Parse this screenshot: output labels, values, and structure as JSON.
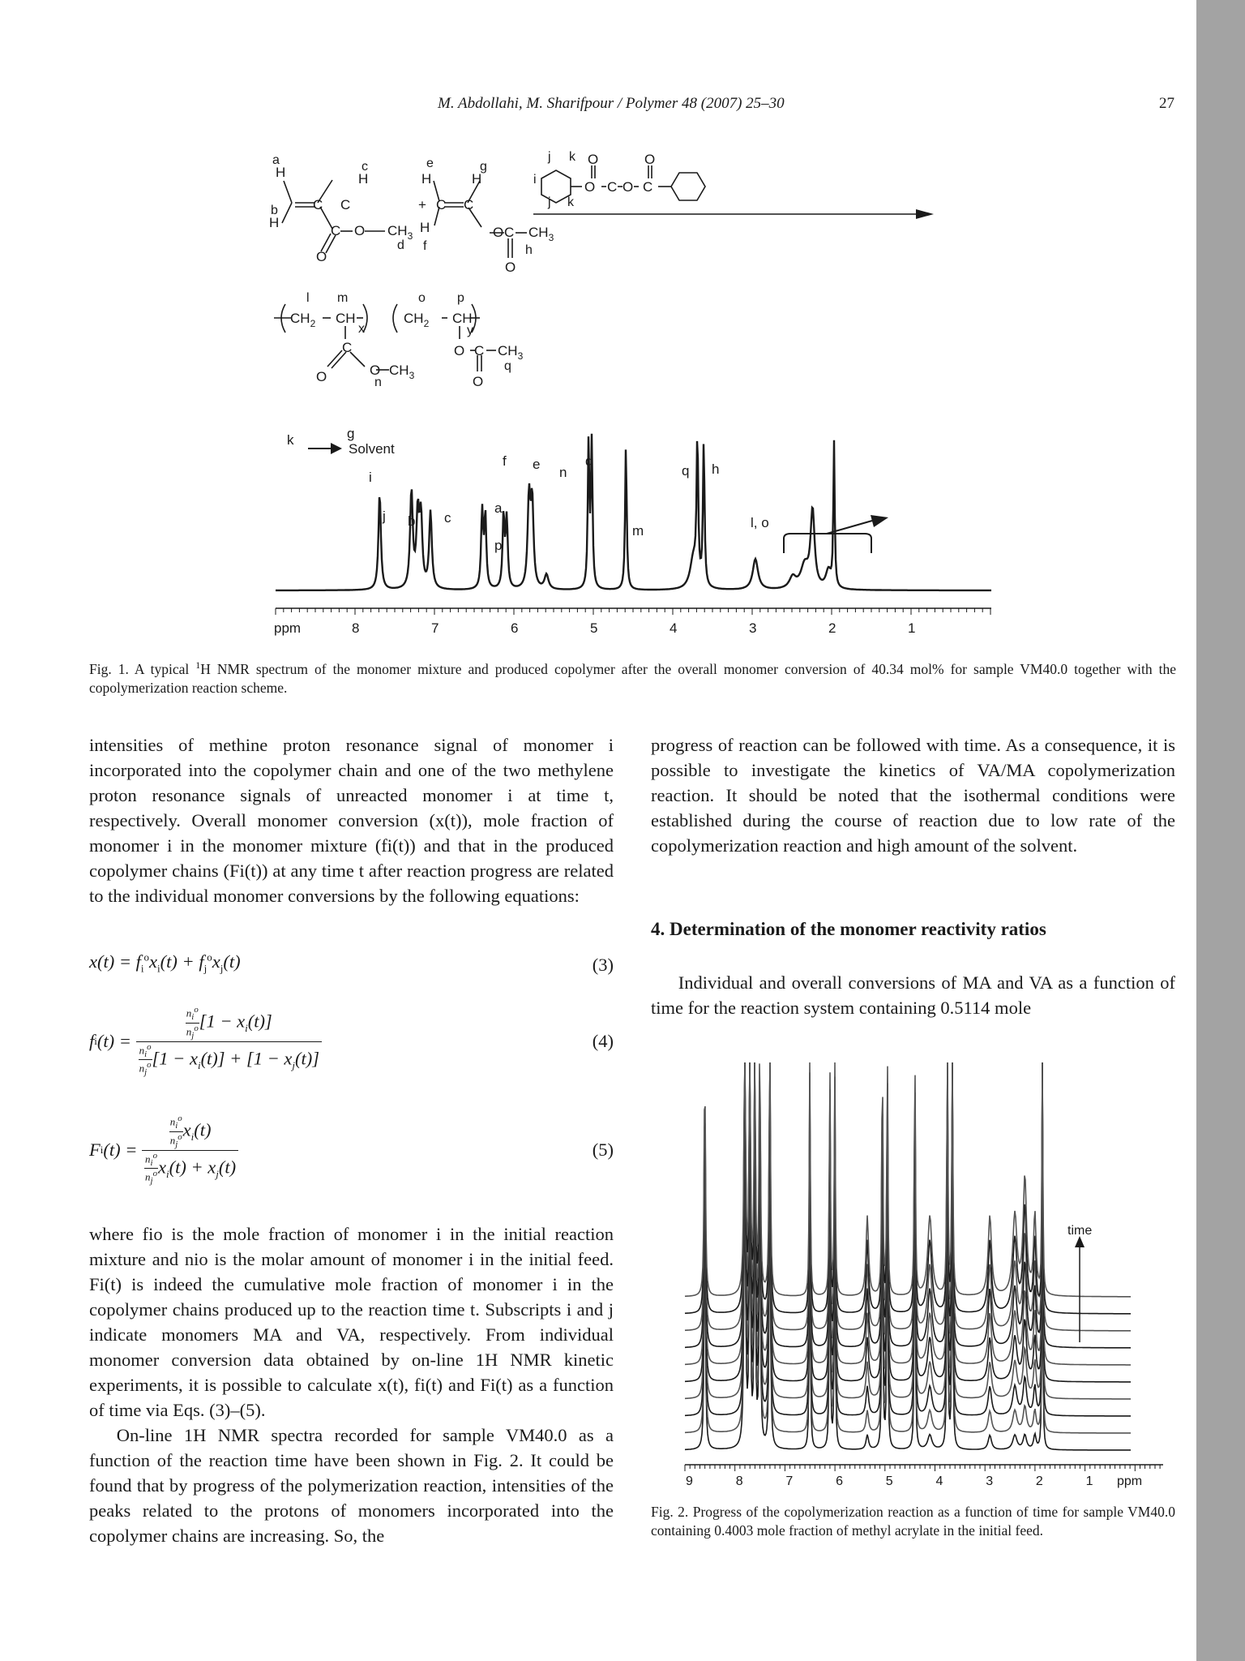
{
  "header": {
    "running_title": "M. Abdollahi, M. Sharifpour / Polymer 48 (2007) 25–30",
    "page_number": "27"
  },
  "figure1": {
    "scheme_labels": [
      "a",
      "b",
      "c",
      "d",
      "e",
      "f",
      "g",
      "h",
      "i",
      "j",
      "j",
      "k",
      "k",
      "l",
      "m",
      "n",
      "o",
      "p",
      "q",
      "x",
      "y"
    ],
    "scheme_atoms": [
      "H",
      "H",
      "C",
      "C",
      "H",
      "C",
      "O",
      "CH3",
      "O",
      "H",
      "H",
      "C",
      "C",
      "H",
      "O",
      "C",
      "CH3",
      "O",
      "O",
      "O",
      "C",
      "O",
      "O",
      "C",
      "CH2",
      "CH",
      "C",
      "O",
      "O",
      "CH3",
      "CH2",
      "CH",
      "O",
      "C",
      "CH3",
      "O",
      "+"
    ],
    "peak_labels": [
      "k",
      "g",
      "i",
      "j",
      "b",
      "c",
      "a",
      "p",
      "f",
      "e",
      "n",
      "d",
      "m",
      "q",
      "h",
      "l, o"
    ],
    "solvent_label": "Solvent",
    "axis_unit": "ppm",
    "axis_ticks": [
      "8",
      "7",
      "6",
      "5",
      "4",
      "3",
      "2",
      "1"
    ],
    "caption_prefix": "Fig. 1. A typical ",
    "caption_sup": "1",
    "caption_rest": "H NMR spectrum of the monomer mixture and produced copolymer after the overall monomer conversion of 40.34 mol% for sample VM40.0 together with the copolymerization reaction scheme."
  },
  "left_column": {
    "p1": "intensities of methine proton resonance signal of monomer i incorporated into the copolymer chain and one of the two methylene proton resonance signals of unreacted monomer i at time t, respectively. Overall monomer conversion (x(t)), mole fraction of monomer i in the monomer mixture (fi(t)) and that in the produced copolymer chains (Fi(t)) at any time t after reaction progress are related to the individual monomer conversions by the following equations:",
    "eq3_no": "(3)",
    "eq4_no": "(4)",
    "eq5_no": "(5)",
    "p2": "where fio is the mole fraction of monomer i in the initial reaction mixture and nio is the molar amount of monomer i in the initial feed. Fi(t) is indeed the cumulative mole fraction of monomer i in the copolymer chains produced up to the reaction time t. Subscripts i and j indicate monomers MA and VA, respectively. From individual monomer conversion data obtained by on-line 1H NMR kinetic experiments, it is possible to calculate x(t), fi(t) and Fi(t) as a function of time via Eqs. (3)–(5).",
    "p3": "On-line 1H NMR spectra recorded for sample VM40.0 as a function of the reaction time have been shown in Fig. 2. It could be found that by progress of the polymerization reaction, intensities of the peaks related to the protons of monomers incorporated into the copolymer chains are increasing. So, the"
  },
  "right_column": {
    "p1": "progress of reaction can be followed with time. As a consequence, it is possible to investigate the kinetics of VA/MA copolymerization reaction. It should be noted that the isothermal conditions were established during the course of reaction due to low rate of the copolymerization reaction and high amount of the solvent.",
    "section_title": "4. Determination of the monomer reactivity ratios",
    "p2": "Individual and overall conversions of MA and VA as a function of time for the reaction system containing 0.5114 mole"
  },
  "figure2": {
    "time_label": "time",
    "axis_ticks": [
      "9",
      "8",
      "7",
      "6",
      "5",
      "4",
      "3",
      "2",
      "1"
    ],
    "axis_unit": "ppm",
    "caption": "Fig. 2. Progress of the copolymerization reaction as a function of time for sample VM40.0 containing 0.4003 mole fraction of methyl acrylate in the initial feed."
  }
}
